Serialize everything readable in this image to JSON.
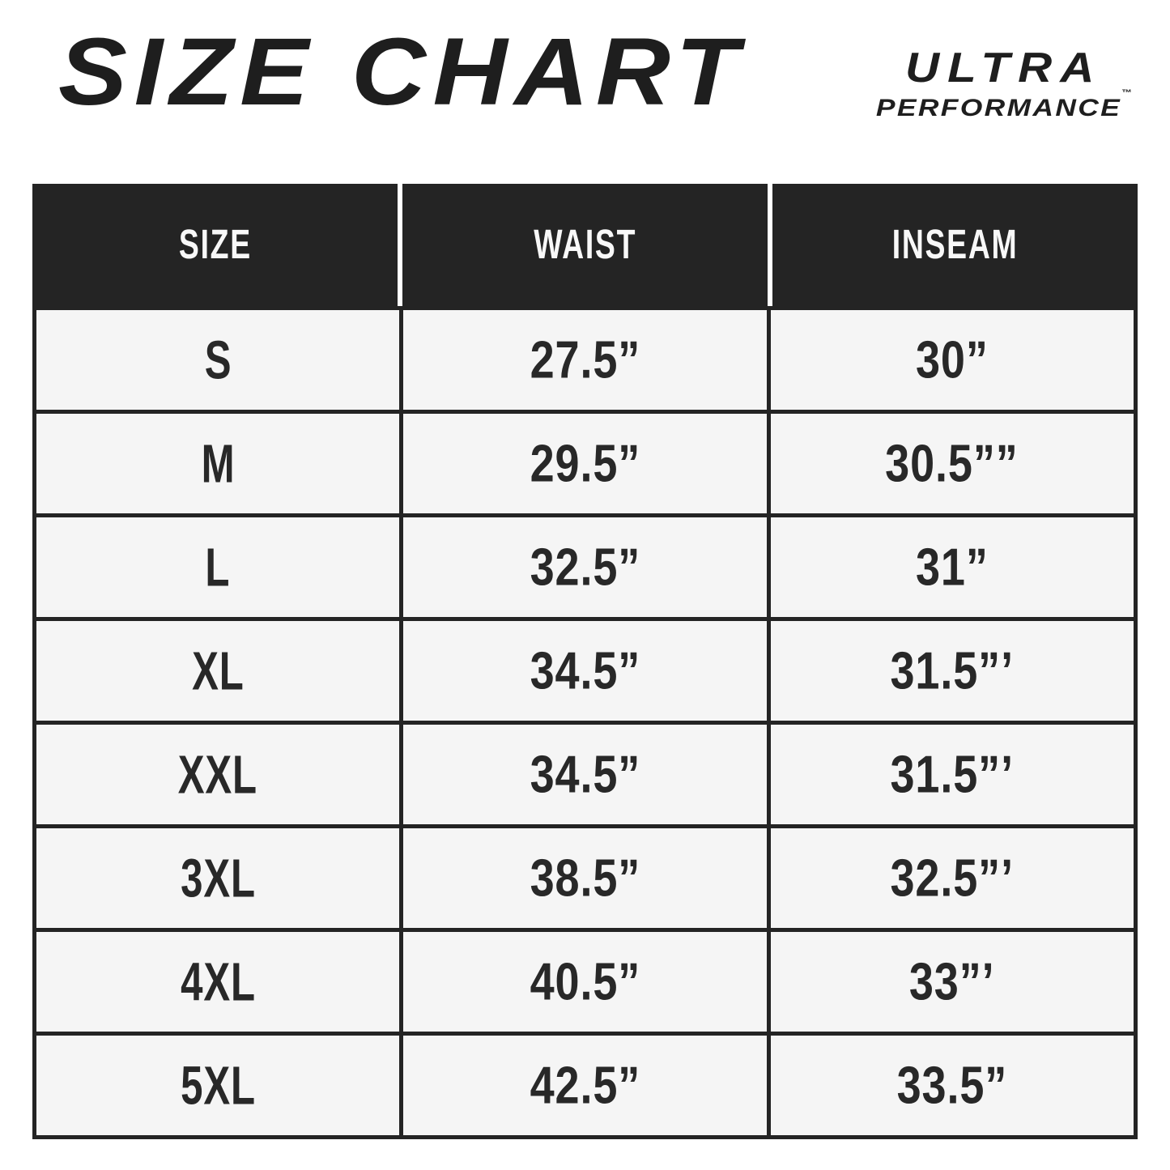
{
  "header": {
    "title": "SIZE CHART",
    "brand": {
      "line1": "ULTRA",
      "line2": "PERFORMANCE",
      "tm": "™"
    }
  },
  "colors": {
    "header_bg": "#242424",
    "cell_bg": "#f5f5f5",
    "grid_border": "#242424",
    "cell_text": "#282828",
    "header_text": "#f8f8f8",
    "page_bg": "#ffffff"
  },
  "chart_data": {
    "type": "table",
    "title": "SIZE CHART",
    "columns": [
      "SIZE",
      "WAIST",
      "INSEAM"
    ],
    "rows": [
      {
        "size": "S",
        "waist": "27.5”",
        "inseam": "30”"
      },
      {
        "size": "M",
        "waist": "29.5”",
        "inseam": "30.5””"
      },
      {
        "size": "L",
        "waist": "32.5”",
        "inseam": "31”"
      },
      {
        "size": "XL",
        "waist": "34.5”",
        "inseam": "31.5”’"
      },
      {
        "size": "XXL",
        "waist": "34.5”",
        "inseam": "31.5”’"
      },
      {
        "size": "3XL",
        "waist": "38.5”",
        "inseam": "32.5”’"
      },
      {
        "size": "4XL",
        "waist": "40.5”",
        "inseam": "33”’"
      },
      {
        "size": "5XL",
        "waist": "42.5”",
        "inseam": "33.5”"
      }
    ]
  }
}
